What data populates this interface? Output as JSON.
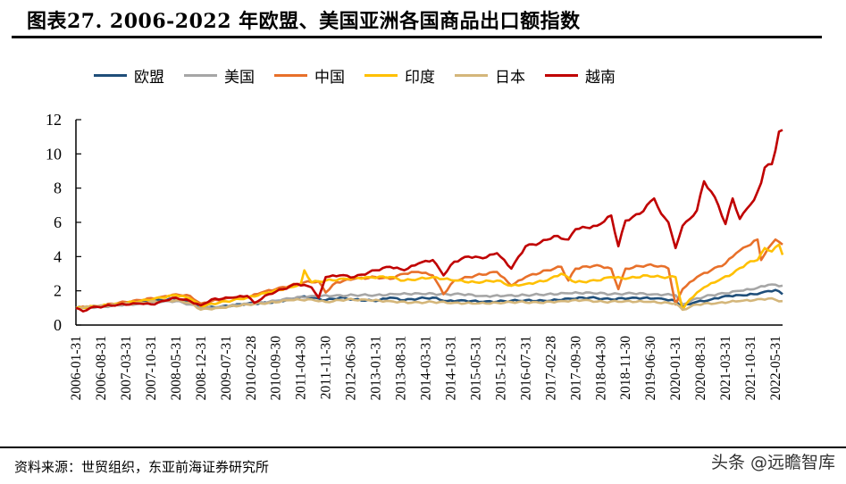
{
  "title": "图表27. 2006-2022 年欧盟、美国亚洲各国商品出口额指数",
  "source": "资料来源：世贸组织，东亚前海证券研究所",
  "watermark": "头条 @远瞻智库",
  "chart_data": {
    "type": "line",
    "title": "2006-2022 年欧盟、美国亚洲各国商品出口额指数",
    "xlabel": "",
    "ylabel": "",
    "ylim": [
      0,
      12
    ],
    "yticks": [
      0,
      2,
      4,
      6,
      8,
      10,
      12
    ],
    "grid": false,
    "legend_position": "top",
    "x_start": "2006-01-31",
    "x_end": "2022-07-31",
    "x_points": 199,
    "xtick_labels": [
      "2006-01-31",
      "2006-08-31",
      "2007-03-31",
      "2007-10-31",
      "2008-05-31",
      "2008-12-31",
      "2009-07-31",
      "2010-02-28",
      "2010-09-30",
      "2011-04-30",
      "2011-11-30",
      "2012-06-30",
      "2013-01-31",
      "2013-08-31",
      "2014-03-31",
      "2014-10-31",
      "2015-05-31",
      "2015-12-31",
      "2016-07-31",
      "2017-02-28",
      "2017-09-30",
      "2018-04-30",
      "2018-11-30",
      "2019-06-30",
      "2020-01-31",
      "2020-08-31",
      "2021-03-31",
      "2021-10-31",
      "2022-05-31"
    ],
    "xtick_step_months": 7,
    "series": [
      {
        "name": "欧盟",
        "color": "#1f4e79",
        "anchors": [
          [
            0,
            1.0
          ],
          [
            6,
            1.1
          ],
          [
            12,
            1.2
          ],
          [
            18,
            1.3
          ],
          [
            24,
            1.45
          ],
          [
            28,
            1.55
          ],
          [
            32,
            1.35
          ],
          [
            35,
            1.0
          ],
          [
            40,
            1.05
          ],
          [
            48,
            1.25
          ],
          [
            54,
            1.3
          ],
          [
            60,
            1.5
          ],
          [
            63,
            1.65
          ],
          [
            66,
            1.6
          ],
          [
            70,
            1.45
          ],
          [
            74,
            1.6
          ],
          [
            78,
            1.5
          ],
          [
            84,
            1.4
          ],
          [
            88,
            1.6
          ],
          [
            92,
            1.45
          ],
          [
            96,
            1.55
          ],
          [
            100,
            1.6
          ],
          [
            104,
            1.4
          ],
          [
            108,
            1.45
          ],
          [
            114,
            1.35
          ],
          [
            120,
            1.4
          ],
          [
            126,
            1.45
          ],
          [
            132,
            1.4
          ],
          [
            138,
            1.55
          ],
          [
            144,
            1.6
          ],
          [
            150,
            1.5
          ],
          [
            156,
            1.6
          ],
          [
            162,
            1.55
          ],
          [
            165,
            1.5
          ],
          [
            168,
            1.4
          ],
          [
            170,
            1.1
          ],
          [
            173,
            1.3
          ],
          [
            178,
            1.5
          ],
          [
            182,
            1.7
          ],
          [
            186,
            1.75
          ],
          [
            190,
            1.8
          ],
          [
            193,
            1.95
          ],
          [
            196,
            2.05
          ],
          [
            198,
            1.8
          ]
        ]
      },
      {
        "name": "美国",
        "color": "#a6a6a6",
        "anchors": [
          [
            0,
            1.0
          ],
          [
            6,
            1.05
          ],
          [
            12,
            1.15
          ],
          [
            18,
            1.25
          ],
          [
            24,
            1.35
          ],
          [
            28,
            1.4
          ],
          [
            32,
            1.2
          ],
          [
            35,
            1.0
          ],
          [
            40,
            1.05
          ],
          [
            48,
            1.25
          ],
          [
            54,
            1.35
          ],
          [
            60,
            1.55
          ],
          [
            66,
            1.7
          ],
          [
            72,
            1.7
          ],
          [
            78,
            1.75
          ],
          [
            84,
            1.75
          ],
          [
            90,
            1.8
          ],
          [
            96,
            1.85
          ],
          [
            102,
            1.8
          ],
          [
            108,
            1.8
          ],
          [
            114,
            1.7
          ],
          [
            120,
            1.7
          ],
          [
            126,
            1.75
          ],
          [
            132,
            1.8
          ],
          [
            138,
            1.85
          ],
          [
            144,
            1.9
          ],
          [
            150,
            1.8
          ],
          [
            156,
            1.85
          ],
          [
            162,
            1.8
          ],
          [
            168,
            1.75
          ],
          [
            170,
            1.2
          ],
          [
            173,
            1.5
          ],
          [
            178,
            1.75
          ],
          [
            182,
            1.85
          ],
          [
            186,
            2.0
          ],
          [
            190,
            2.1
          ],
          [
            194,
            2.35
          ],
          [
            198,
            2.3
          ]
        ]
      },
      {
        "name": "中国",
        "color": "#e8702a",
        "anchors": [
          [
            0,
            1.0
          ],
          [
            6,
            1.1
          ],
          [
            12,
            1.3
          ],
          [
            18,
            1.45
          ],
          [
            24,
            1.65
          ],
          [
            28,
            1.8
          ],
          [
            32,
            1.7
          ],
          [
            35,
            1.25
          ],
          [
            38,
            1.4
          ],
          [
            44,
            1.6
          ],
          [
            48,
            1.6
          ],
          [
            52,
            1.9
          ],
          [
            56,
            2.1
          ],
          [
            60,
            2.3
          ],
          [
            64,
            2.5
          ],
          [
            68,
            2.55
          ],
          [
            70,
            1.9
          ],
          [
            73,
            2.5
          ],
          [
            78,
            2.7
          ],
          [
            84,
            2.8
          ],
          [
            88,
            2.7
          ],
          [
            92,
            3.0
          ],
          [
            96,
            3.1
          ],
          [
            100,
            2.9
          ],
          [
            103,
            1.8
          ],
          [
            106,
            2.6
          ],
          [
            112,
            2.9
          ],
          [
            118,
            3.1
          ],
          [
            122,
            2.3
          ],
          [
            126,
            2.8
          ],
          [
            132,
            3.2
          ],
          [
            136,
            3.4
          ],
          [
            138,
            2.6
          ],
          [
            140,
            3.3
          ],
          [
            146,
            3.5
          ],
          [
            150,
            3.3
          ],
          [
            152,
            2.1
          ],
          [
            154,
            3.3
          ],
          [
            160,
            3.5
          ],
          [
            164,
            3.45
          ],
          [
            166,
            3.3
          ],
          [
            168,
            1.2
          ],
          [
            170,
            2.1
          ],
          [
            174,
            2.8
          ],
          [
            178,
            3.2
          ],
          [
            182,
            3.6
          ],
          [
            185,
            4.2
          ],
          [
            188,
            4.6
          ],
          [
            191,
            5.0
          ],
          [
            192,
            3.8
          ],
          [
            194,
            4.5
          ],
          [
            196,
            5.0
          ],
          [
            198,
            4.7
          ]
        ]
      },
      {
        "name": "印度",
        "color": "#ffc000",
        "anchors": [
          [
            0,
            1.0
          ],
          [
            6,
            1.1
          ],
          [
            12,
            1.25
          ],
          [
            18,
            1.4
          ],
          [
            24,
            1.6
          ],
          [
            28,
            1.75
          ],
          [
            32,
            1.55
          ],
          [
            35,
            1.1
          ],
          [
            40,
            1.3
          ],
          [
            48,
            1.6
          ],
          [
            54,
            1.9
          ],
          [
            60,
            2.2
          ],
          [
            63,
            2.4
          ],
          [
            64,
            3.2
          ],
          [
            66,
            2.5
          ],
          [
            70,
            2.6
          ],
          [
            76,
            2.7
          ],
          [
            82,
            2.8
          ],
          [
            88,
            2.8
          ],
          [
            92,
            2.6
          ],
          [
            96,
            2.7
          ],
          [
            100,
            2.8
          ],
          [
            106,
            2.6
          ],
          [
            112,
            2.5
          ],
          [
            118,
            2.6
          ],
          [
            122,
            2.3
          ],
          [
            126,
            2.4
          ],
          [
            132,
            2.6
          ],
          [
            136,
            3.0
          ],
          [
            140,
            2.5
          ],
          [
            146,
            2.6
          ],
          [
            150,
            2.8
          ],
          [
            154,
            2.7
          ],
          [
            160,
            2.9
          ],
          [
            164,
            2.8
          ],
          [
            168,
            2.8
          ],
          [
            170,
            0.9
          ],
          [
            172,
            1.5
          ],
          [
            176,
            2.2
          ],
          [
            180,
            2.6
          ],
          [
            184,
            3.0
          ],
          [
            188,
            3.6
          ],
          [
            191,
            3.8
          ],
          [
            193,
            4.5
          ],
          [
            195,
            4.3
          ],
          [
            197,
            4.7
          ],
          [
            198,
            4.1
          ]
        ]
      },
      {
        "name": "日本",
        "color": "#d4b67a",
        "anchors": [
          [
            0,
            1.0
          ],
          [
            6,
            1.1
          ],
          [
            12,
            1.2
          ],
          [
            18,
            1.3
          ],
          [
            24,
            1.4
          ],
          [
            28,
            1.45
          ],
          [
            32,
            1.3
          ],
          [
            35,
            0.9
          ],
          [
            40,
            1.0
          ],
          [
            48,
            1.2
          ],
          [
            54,
            1.3
          ],
          [
            60,
            1.45
          ],
          [
            66,
            1.5
          ],
          [
            70,
            1.35
          ],
          [
            76,
            1.5
          ],
          [
            82,
            1.45
          ],
          [
            88,
            1.4
          ],
          [
            94,
            1.3
          ],
          [
            100,
            1.35
          ],
          [
            106,
            1.3
          ],
          [
            112,
            1.25
          ],
          [
            118,
            1.3
          ],
          [
            124,
            1.35
          ],
          [
            130,
            1.3
          ],
          [
            136,
            1.4
          ],
          [
            142,
            1.45
          ],
          [
            148,
            1.35
          ],
          [
            154,
            1.4
          ],
          [
            160,
            1.35
          ],
          [
            166,
            1.3
          ],
          [
            168,
            1.25
          ],
          [
            170,
            0.9
          ],
          [
            174,
            1.2
          ],
          [
            180,
            1.3
          ],
          [
            186,
            1.4
          ],
          [
            190,
            1.45
          ],
          [
            194,
            1.55
          ],
          [
            198,
            1.4
          ]
        ]
      },
      {
        "name": "越南",
        "color": "#c00000",
        "anchors": [
          [
            0,
            1.0
          ],
          [
            2,
            0.8
          ],
          [
            4,
            1.0
          ],
          [
            8,
            1.1
          ],
          [
            12,
            1.2
          ],
          [
            18,
            1.25
          ],
          [
            22,
            1.2
          ],
          [
            24,
            1.4
          ],
          [
            28,
            1.6
          ],
          [
            32,
            1.4
          ],
          [
            35,
            1.15
          ],
          [
            38,
            1.5
          ],
          [
            44,
            1.6
          ],
          [
            48,
            1.7
          ],
          [
            50,
            1.3
          ],
          [
            54,
            1.8
          ],
          [
            58,
            2.1
          ],
          [
            62,
            2.4
          ],
          [
            66,
            2.2
          ],
          [
            68,
            1.6
          ],
          [
            70,
            2.8
          ],
          [
            74,
            2.9
          ],
          [
            78,
            2.8
          ],
          [
            84,
            3.2
          ],
          [
            88,
            3.4
          ],
          [
            92,
            3.2
          ],
          [
            96,
            3.6
          ],
          [
            100,
            3.8
          ],
          [
            103,
            2.9
          ],
          [
            106,
            3.7
          ],
          [
            110,
            4.0
          ],
          [
            114,
            3.9
          ],
          [
            118,
            4.2
          ],
          [
            122,
            3.3
          ],
          [
            126,
            4.6
          ],
          [
            130,
            4.8
          ],
          [
            134,
            5.2
          ],
          [
            138,
            5.0
          ],
          [
            140,
            5.6
          ],
          [
            146,
            5.8
          ],
          [
            150,
            6.4
          ],
          [
            152,
            4.6
          ],
          [
            154,
            6.1
          ],
          [
            158,
            6.5
          ],
          [
            162,
            7.4
          ],
          [
            164,
            6.5
          ],
          [
            166,
            6.0
          ],
          [
            168,
            4.5
          ],
          [
            170,
            5.8
          ],
          [
            172,
            6.2
          ],
          [
            174,
            6.7
          ],
          [
            176,
            8.4
          ],
          [
            178,
            7.8
          ],
          [
            180,
            7.0
          ],
          [
            182,
            5.9
          ],
          [
            184,
            7.4
          ],
          [
            186,
            6.2
          ],
          [
            188,
            6.8
          ],
          [
            190,
            7.3
          ],
          [
            192,
            8.3
          ],
          [
            193,
            9.2
          ],
          [
            195,
            9.4
          ],
          [
            196,
            10.2
          ],
          [
            197,
            11.3
          ],
          [
            198,
            11.4
          ]
        ]
      }
    ]
  },
  "legend": [
    {
      "label": "欧盟",
      "color": "#1f4e79"
    },
    {
      "label": "美国",
      "color": "#a6a6a6"
    },
    {
      "label": "中国",
      "color": "#e8702a"
    },
    {
      "label": "印度",
      "color": "#ffc000"
    },
    {
      "label": "日本",
      "color": "#d4b67a"
    },
    {
      "label": "越南",
      "color": "#c00000"
    }
  ]
}
